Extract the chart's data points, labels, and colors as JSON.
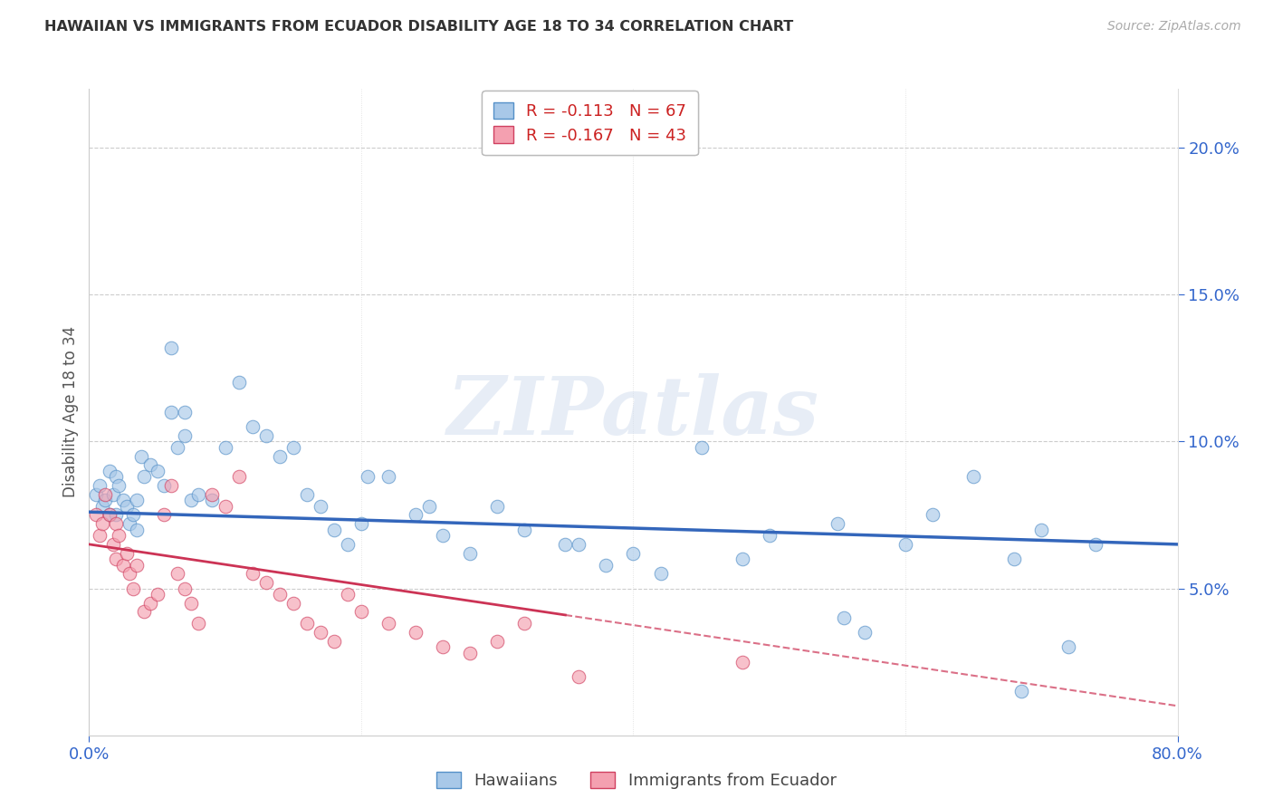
{
  "title": "HAWAIIAN VS IMMIGRANTS FROM ECUADOR DISABILITY AGE 18 TO 34 CORRELATION CHART",
  "source": "Source: ZipAtlas.com",
  "ylabel": "Disability Age 18 to 34",
  "legend_hawaiians": "Hawaiians",
  "legend_ecuador": "Immigrants from Ecuador",
  "r_hawaiians": -0.113,
  "n_hawaiians": 67,
  "r_ecuador": -0.167,
  "n_ecuador": 43,
  "xlim": [
    0.0,
    80.0
  ],
  "ylim": [
    0.0,
    22.0
  ],
  "yticks": [
    5.0,
    10.0,
    15.0,
    20.0
  ],
  "color_hawaiians": "#a8c8e8",
  "color_ecuador": "#f4a0b0",
  "edge_hawaiians": "#5590c8",
  "edge_ecuador": "#d04060",
  "line_color_hawaiians": "#3366bb",
  "line_color_ecuador": "#cc3355",
  "background_color": "#ffffff",
  "watermark": "ZIPatlas",
  "hawaiians_x": [
    0.5,
    0.8,
    1.0,
    1.2,
    1.5,
    1.5,
    1.8,
    2.0,
    2.0,
    2.2,
    2.5,
    2.8,
    3.0,
    3.2,
    3.5,
    3.8,
    4.0,
    4.5,
    5.0,
    5.5,
    6.0,
    6.5,
    7.0,
    7.5,
    8.0,
    9.0,
    10.0,
    11.0,
    12.0,
    13.0,
    14.0,
    15.0,
    16.0,
    17.0,
    18.0,
    19.0,
    20.0,
    22.0,
    24.0,
    25.0,
    26.0,
    28.0,
    30.0,
    32.0,
    35.0,
    38.0,
    40.0,
    42.0,
    45.0,
    48.0,
    50.0,
    55.0,
    57.0,
    60.0,
    62.0,
    65.0,
    68.0,
    70.0,
    72.0,
    74.0,
    6.0,
    7.0,
    3.5,
    20.5,
    36.0,
    55.5,
    68.5
  ],
  "hawaiians_y": [
    8.2,
    8.5,
    7.8,
    8.0,
    7.5,
    9.0,
    8.2,
    7.5,
    8.8,
    8.5,
    8.0,
    7.8,
    7.2,
    7.5,
    7.0,
    9.5,
    8.8,
    9.2,
    9.0,
    8.5,
    11.0,
    9.8,
    10.2,
    8.0,
    8.2,
    8.0,
    9.8,
    12.0,
    10.5,
    10.2,
    9.5,
    9.8,
    8.2,
    7.8,
    7.0,
    6.5,
    7.2,
    8.8,
    7.5,
    7.8,
    6.8,
    6.2,
    7.8,
    7.0,
    6.5,
    5.8,
    6.2,
    5.5,
    9.8,
    6.0,
    6.8,
    7.2,
    3.5,
    6.5,
    7.5,
    8.8,
    6.0,
    7.0,
    3.0,
    6.5,
    13.2,
    11.0,
    8.0,
    8.8,
    6.5,
    4.0,
    1.5
  ],
  "ecuador_x": [
    0.5,
    0.8,
    1.0,
    1.2,
    1.5,
    1.8,
    2.0,
    2.0,
    2.2,
    2.5,
    2.8,
    3.0,
    3.2,
    3.5,
    4.0,
    4.5,
    5.0,
    5.5,
    6.0,
    6.5,
    7.0,
    7.5,
    8.0,
    9.0,
    10.0,
    11.0,
    12.0,
    13.0,
    14.0,
    15.0,
    16.0,
    17.0,
    18.0,
    19.0,
    20.0,
    22.0,
    24.0,
    26.0,
    28.0,
    30.0,
    32.0,
    48.0,
    36.0
  ],
  "ecuador_y": [
    7.5,
    6.8,
    7.2,
    8.2,
    7.5,
    6.5,
    6.0,
    7.2,
    6.8,
    5.8,
    6.2,
    5.5,
    5.0,
    5.8,
    4.2,
    4.5,
    4.8,
    7.5,
    8.5,
    5.5,
    5.0,
    4.5,
    3.8,
    8.2,
    7.8,
    8.8,
    5.5,
    5.2,
    4.8,
    4.5,
    3.8,
    3.5,
    3.2,
    4.8,
    4.2,
    3.8,
    3.5,
    3.0,
    2.8,
    3.2,
    3.8,
    2.5,
    2.0
  ],
  "line_h_x0": 0,
  "line_h_y0": 7.6,
  "line_h_x1": 80,
  "line_h_y1": 6.5,
  "line_e_x0": 0,
  "line_e_y0": 6.5,
  "line_e_x1": 80,
  "line_e_y1": 1.0
}
